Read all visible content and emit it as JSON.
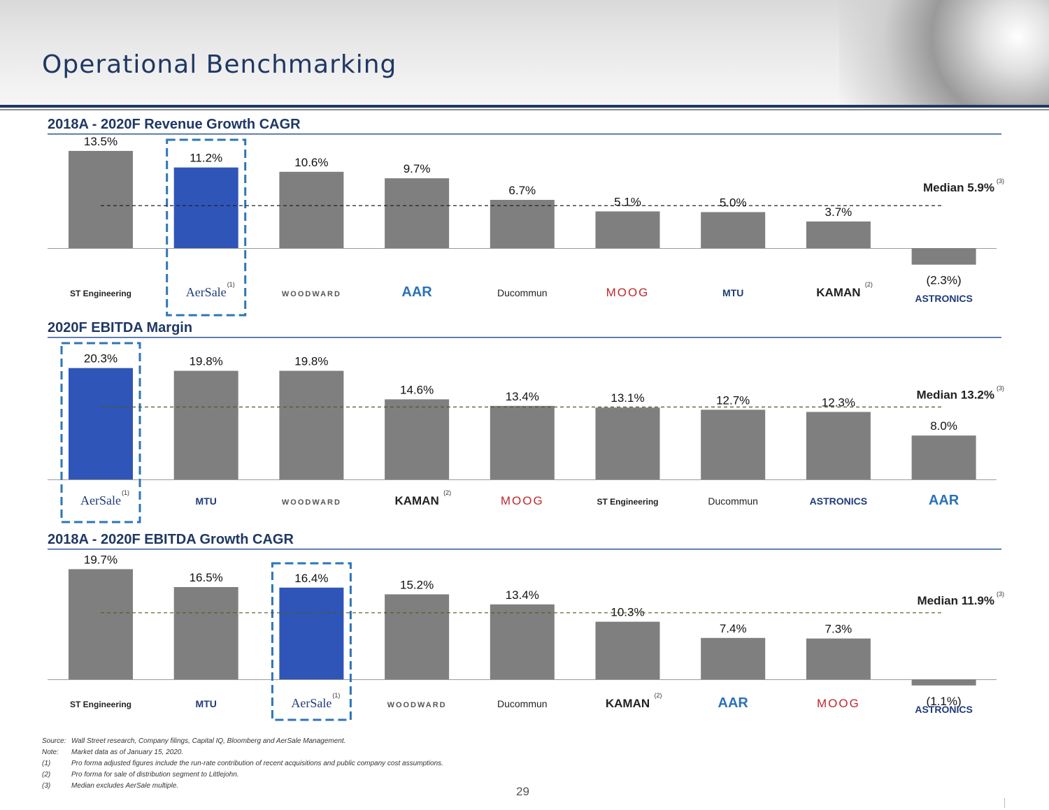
{
  "page": {
    "title": "Operational Benchmarking",
    "number": "29"
  },
  "footnotes": [
    {
      "key": "Source:",
      "text": "Wall Street research, Company filings, Capital IQ, Bloomberg and AerSale Management."
    },
    {
      "key": "Note:",
      "text": "Market data as of January 15, 2020."
    },
    {
      "key": "(1)",
      "text": "Pro forma adjusted figures include the run-rate contribution of recent acquisitions and public company cost assumptions."
    },
    {
      "key": "(2)",
      "text": "Pro forma for sale of distribution segment to Littlejohn."
    },
    {
      "key": "(3)",
      "text": "Median excludes AerSale multiple."
    }
  ],
  "colors": {
    "title": "#1f3864",
    "bar": "#7f7f7f",
    "highlight": "#2f55b8",
    "dash": "#2e75b6",
    "rule": "#1f3864"
  },
  "chart_data": [
    {
      "type": "bar",
      "title": "2018A - 2020F Revenue Growth CAGR",
      "categories": [
        "ST Engineering",
        "AerSale",
        "WOODWARD",
        "AAR",
        "Ducommun",
        "MOOG",
        "MTU",
        "KAMAN",
        "ASTRONICS"
      ],
      "values": [
        13.5,
        11.2,
        10.6,
        9.7,
        6.7,
        5.1,
        5.0,
        3.7,
        -2.3
      ],
      "labels": [
        "13.5%",
        "11.2%",
        "10.6%",
        "9.7%",
        "6.7%",
        "5.1%",
        "5.0%",
        "3.7%",
        "(2.3%)"
      ],
      "highlight": "AerSale",
      "median": {
        "value": 5.9,
        "label": "Median 5.9%",
        "note": "(3)"
      },
      "category_notes": {
        "AerSale": "(1)",
        "KAMAN": "(2)"
      },
      "grid": false
    },
    {
      "type": "bar",
      "title": "2020F EBITDA Margin",
      "categories": [
        "AerSale",
        "MTU",
        "WOODWARD",
        "KAMAN",
        "MOOG",
        "ST Engineering",
        "Ducommun",
        "ASTRONICS",
        "AAR"
      ],
      "values": [
        20.3,
        19.8,
        19.8,
        14.6,
        13.4,
        13.1,
        12.7,
        12.3,
        8.0
      ],
      "labels": [
        "20.3%",
        "19.8%",
        "19.8%",
        "14.6%",
        "13.4%",
        "13.1%",
        "12.7%",
        "12.3%",
        "8.0%"
      ],
      "highlight": "AerSale",
      "median": {
        "value": 13.2,
        "label": "Median 13.2%",
        "note": "(3)"
      },
      "category_notes": {
        "AerSale": "(1)",
        "KAMAN": "(2)"
      },
      "grid": false
    },
    {
      "type": "bar",
      "title": "2018A - 2020F EBITDA Growth CAGR",
      "categories": [
        "ST Engineering",
        "MTU",
        "AerSale",
        "WOODWARD",
        "Ducommun",
        "KAMAN",
        "AAR",
        "MOOG",
        "ASTRONICS"
      ],
      "values": [
        19.7,
        16.5,
        16.4,
        15.2,
        13.4,
        10.3,
        7.4,
        7.3,
        -1.1
      ],
      "labels": [
        "19.7%",
        "16.5%",
        "16.4%",
        "15.2%",
        "13.4%",
        "10.3%",
        "7.4%",
        "7.3%",
        "(1.1%)"
      ],
      "highlight": "AerSale",
      "median": {
        "value": 11.9,
        "label": "Median 11.9%",
        "note": "(3)"
      },
      "category_notes": {
        "AerSale": "(1)",
        "KAMAN": "(2)"
      },
      "grid": false
    }
  ]
}
